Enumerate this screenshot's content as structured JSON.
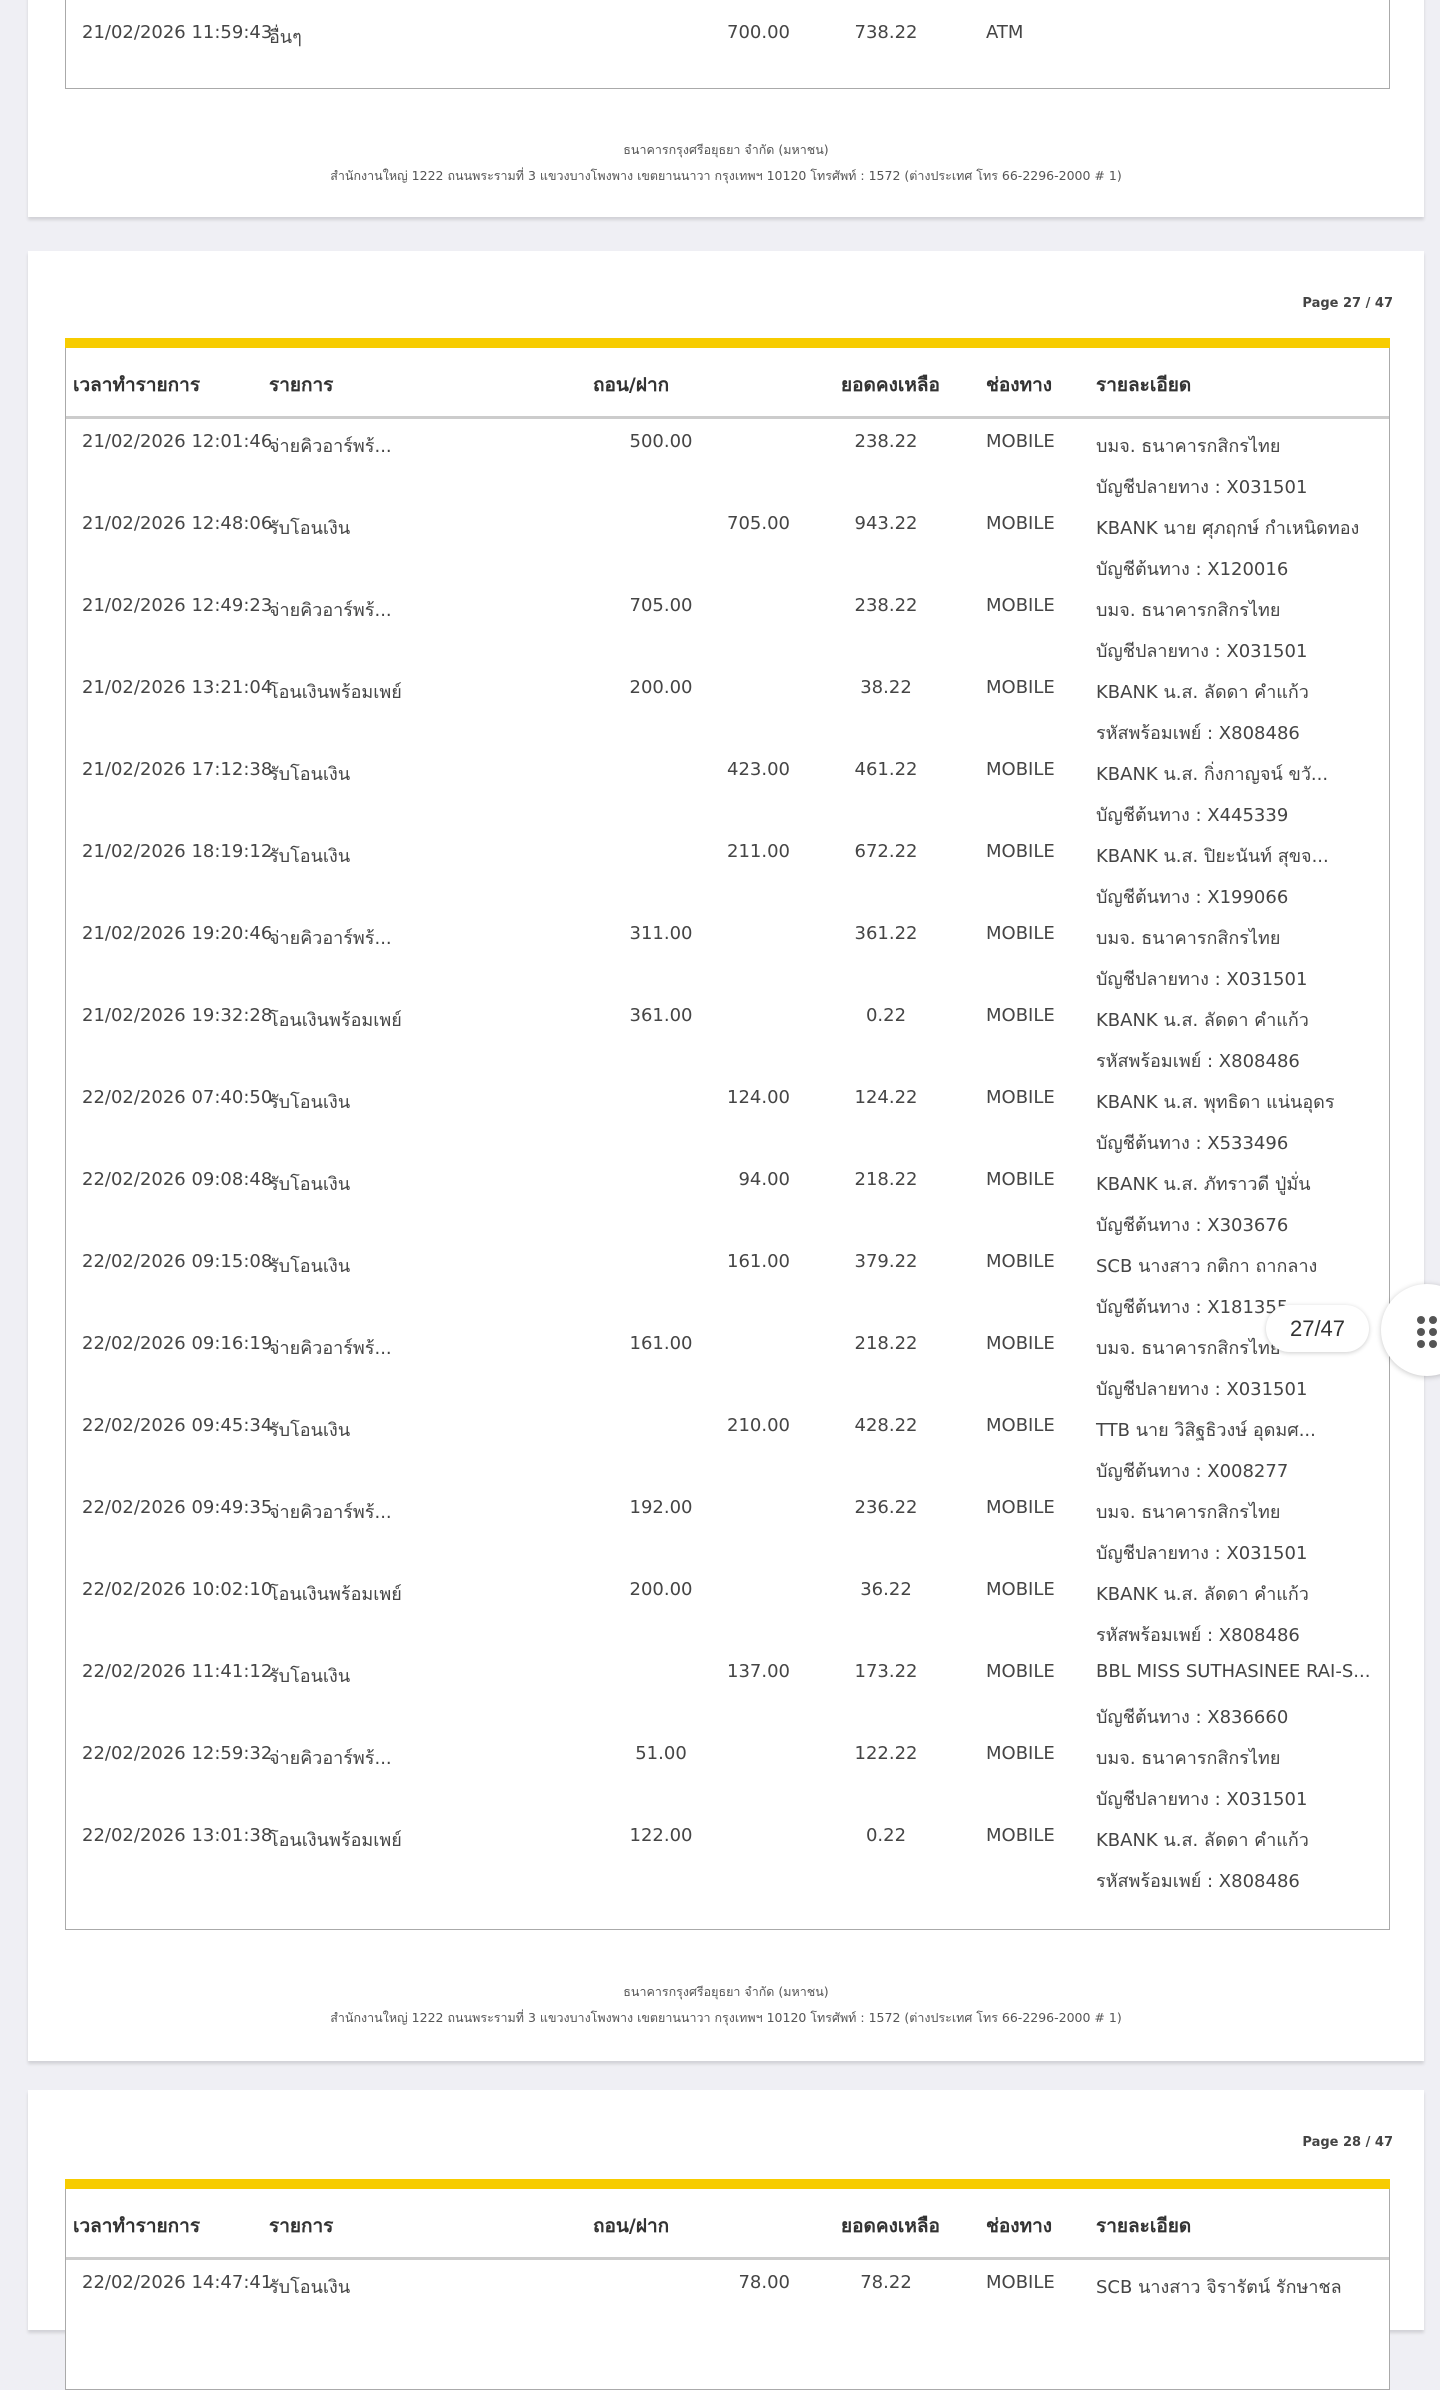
{
  "headers": {
    "datetime": "เวลาทำรายการ",
    "description": "รายการ",
    "withdraw_deposit": "ถอน/ฝาก",
    "balance": "ยอดคงเหลือ",
    "channel": "ช่องทาง",
    "detail": "รายละเอียด"
  },
  "footer": {
    "line1": "ธนาคารกรุงศรีอยุธยา จำกัด (มหาชน)",
    "line2": "สำนักงานใหญ่ 1222 ถนนพระรามที่ 3 แขวงบางโพงพาง เขตยานนาวา กรุงเทพฯ 10120 โทรศัพท์ : 1572 (ต่างประเทศ โทร 66-2296-2000 # 1)"
  },
  "colors": {
    "accent": "#f7cc00",
    "background": "#efeff4"
  },
  "page26": {
    "rows": [
      {
        "datetime": "21/02/2026 11:59:43",
        "description": "อื่นๆ",
        "withdraw": "",
        "deposit": "700.00",
        "balance": "738.22",
        "channel": "ATM",
        "detail1": "",
        "detail2": ""
      }
    ]
  },
  "page27": {
    "page_label": "Page 27 / 47",
    "rows": [
      {
        "datetime": "21/02/2026 12:01:46",
        "description": "จ่ายคิวอาร์พร้...",
        "withdraw": "500.00",
        "deposit": "",
        "balance": "238.22",
        "channel": "MOBILE",
        "detail1": "บมจ. ธนาคารกสิกรไทย",
        "detail2": "บัญชีปลายทาง : X031501"
      },
      {
        "datetime": "21/02/2026 12:48:06",
        "description": "รับโอนเงิน",
        "withdraw": "",
        "deposit": "705.00",
        "balance": "943.22",
        "channel": "MOBILE",
        "detail1": "KBANK นาย ศุภฤกษ์ กำเหนิดทอง",
        "detail2": "บัญชีต้นทาง : X120016"
      },
      {
        "datetime": "21/02/2026 12:49:23",
        "description": "จ่ายคิวอาร์พร้...",
        "withdraw": "705.00",
        "deposit": "",
        "balance": "238.22",
        "channel": "MOBILE",
        "detail1": "บมจ. ธนาคารกสิกรไทย",
        "detail2": "บัญชีปลายทาง : X031501"
      },
      {
        "datetime": "21/02/2026 13:21:04",
        "description": "โอนเงินพร้อมเพย์",
        "withdraw": "200.00",
        "deposit": "",
        "balance": "38.22",
        "channel": "MOBILE",
        "detail1": "KBANK น.ส. ลัดดา คำแก้ว",
        "detail2": "รหัสพร้อมเพย์ : X808486"
      },
      {
        "datetime": "21/02/2026 17:12:38",
        "description": "รับโอนเงิน",
        "withdraw": "",
        "deposit": "423.00",
        "balance": "461.22",
        "channel": "MOBILE",
        "detail1": "KBANK น.ส. กิ่งกาญจน์ ขวั...",
        "detail2": "บัญชีต้นทาง : X445339"
      },
      {
        "datetime": "21/02/2026 18:19:12",
        "description": "รับโอนเงิน",
        "withdraw": "",
        "deposit": "211.00",
        "balance": "672.22",
        "channel": "MOBILE",
        "detail1": "KBANK น.ส. ปิยะนันท์ สุขจ...",
        "detail2": "บัญชีต้นทาง : X199066"
      },
      {
        "datetime": "21/02/2026 19:20:46",
        "description": "จ่ายคิวอาร์พร้...",
        "withdraw": "311.00",
        "deposit": "",
        "balance": "361.22",
        "channel": "MOBILE",
        "detail1": "บมจ. ธนาคารกสิกรไทย",
        "detail2": "บัญชีปลายทาง : X031501"
      },
      {
        "datetime": "21/02/2026 19:32:28",
        "description": "โอนเงินพร้อมเพย์",
        "withdraw": "361.00",
        "deposit": "",
        "balance": "0.22",
        "channel": "MOBILE",
        "detail1": "KBANK น.ส. ลัดดา คำแก้ว",
        "detail2": "รหัสพร้อมเพย์ : X808486"
      },
      {
        "datetime": "22/02/2026 07:40:50",
        "description": "รับโอนเงิน",
        "withdraw": "",
        "deposit": "124.00",
        "balance": "124.22",
        "channel": "MOBILE",
        "detail1": "KBANK น.ส. พุทธิดา แน่นอุดร",
        "detail2": "บัญชีต้นทาง : X533496"
      },
      {
        "datetime": "22/02/2026 09:08:48",
        "description": "รับโอนเงิน",
        "withdraw": "",
        "deposit": "94.00",
        "balance": "218.22",
        "channel": "MOBILE",
        "detail1": "KBANK น.ส. ภัทราวดี ปู่มั่น",
        "detail2": "บัญชีต้นทาง : X303676"
      },
      {
        "datetime": "22/02/2026 09:15:08",
        "description": "รับโอนเงิน",
        "withdraw": "",
        "deposit": "161.00",
        "balance": "379.22",
        "channel": "MOBILE",
        "detail1": "SCB นางสาว กติกา ถากลาง",
        "detail2": "บัญชีต้นทาง : X181355"
      },
      {
        "datetime": "22/02/2026 09:16:19",
        "description": "จ่ายคิวอาร์พร้...",
        "withdraw": "161.00",
        "deposit": "",
        "balance": "218.22",
        "channel": "MOBILE",
        "detail1": "บมจ. ธนาคารกสิกรไทย",
        "detail2": "บัญชีปลายทาง : X031501"
      },
      {
        "datetime": "22/02/2026 09:45:34",
        "description": "รับโอนเงิน",
        "withdraw": "",
        "deposit": "210.00",
        "balance": "428.22",
        "channel": "MOBILE",
        "detail1": "TTB นาย วิสิฐธิวงษ์ อุดมศ...",
        "detail2": "บัญชีต้นทาง : X008277"
      },
      {
        "datetime": "22/02/2026 09:49:35",
        "description": "จ่ายคิวอาร์พร้...",
        "withdraw": "192.00",
        "deposit": "",
        "balance": "236.22",
        "channel": "MOBILE",
        "detail1": "บมจ. ธนาคารกสิกรไทย",
        "detail2": "บัญชีปลายทาง : X031501"
      },
      {
        "datetime": "22/02/2026 10:02:10",
        "description": "โอนเงินพร้อมเพย์",
        "withdraw": "200.00",
        "deposit": "",
        "balance": "36.22",
        "channel": "MOBILE",
        "detail1": "KBANK น.ส. ลัดดา คำแก้ว",
        "detail2": "รหัสพร้อมเพย์ : X808486"
      },
      {
        "datetime": "22/02/2026 11:41:12",
        "description": "รับโอนเงิน",
        "withdraw": "",
        "deposit": "137.00",
        "balance": "173.22",
        "channel": "MOBILE",
        "detail1": "BBL MISS SUTHASINEE RAI-S...",
        "detail2": "บัญชีต้นทาง : X836660"
      },
      {
        "datetime": "22/02/2026 12:59:32",
        "description": "จ่ายคิวอาร์พร้...",
        "withdraw": "51.00",
        "deposit": "",
        "balance": "122.22",
        "channel": "MOBILE",
        "detail1": "บมจ. ธนาคารกสิกรไทย",
        "detail2": "บัญชีปลายทาง : X031501"
      },
      {
        "datetime": "22/02/2026 13:01:38",
        "description": "โอนเงินพร้อมเพย์",
        "withdraw": "122.00",
        "deposit": "",
        "balance": "0.22",
        "channel": "MOBILE",
        "detail1": "KBANK น.ส. ลัดดา คำแก้ว",
        "detail2": "รหัสพร้อมเพย์ : X808486"
      }
    ]
  },
  "page28": {
    "page_label": "Page 28 / 47",
    "rows": [
      {
        "datetime": "22/02/2026 14:47:41",
        "description": "รับโอนเงิน",
        "withdraw": "",
        "deposit": "78.00",
        "balance": "78.22",
        "channel": "MOBILE",
        "detail1": "SCB นางสาว จิรารัตน์ รักษาชล",
        "detail2": ""
      }
    ]
  },
  "viewer": {
    "page_indicator": "27/47",
    "menu_icon": "grid-dots-icon"
  }
}
